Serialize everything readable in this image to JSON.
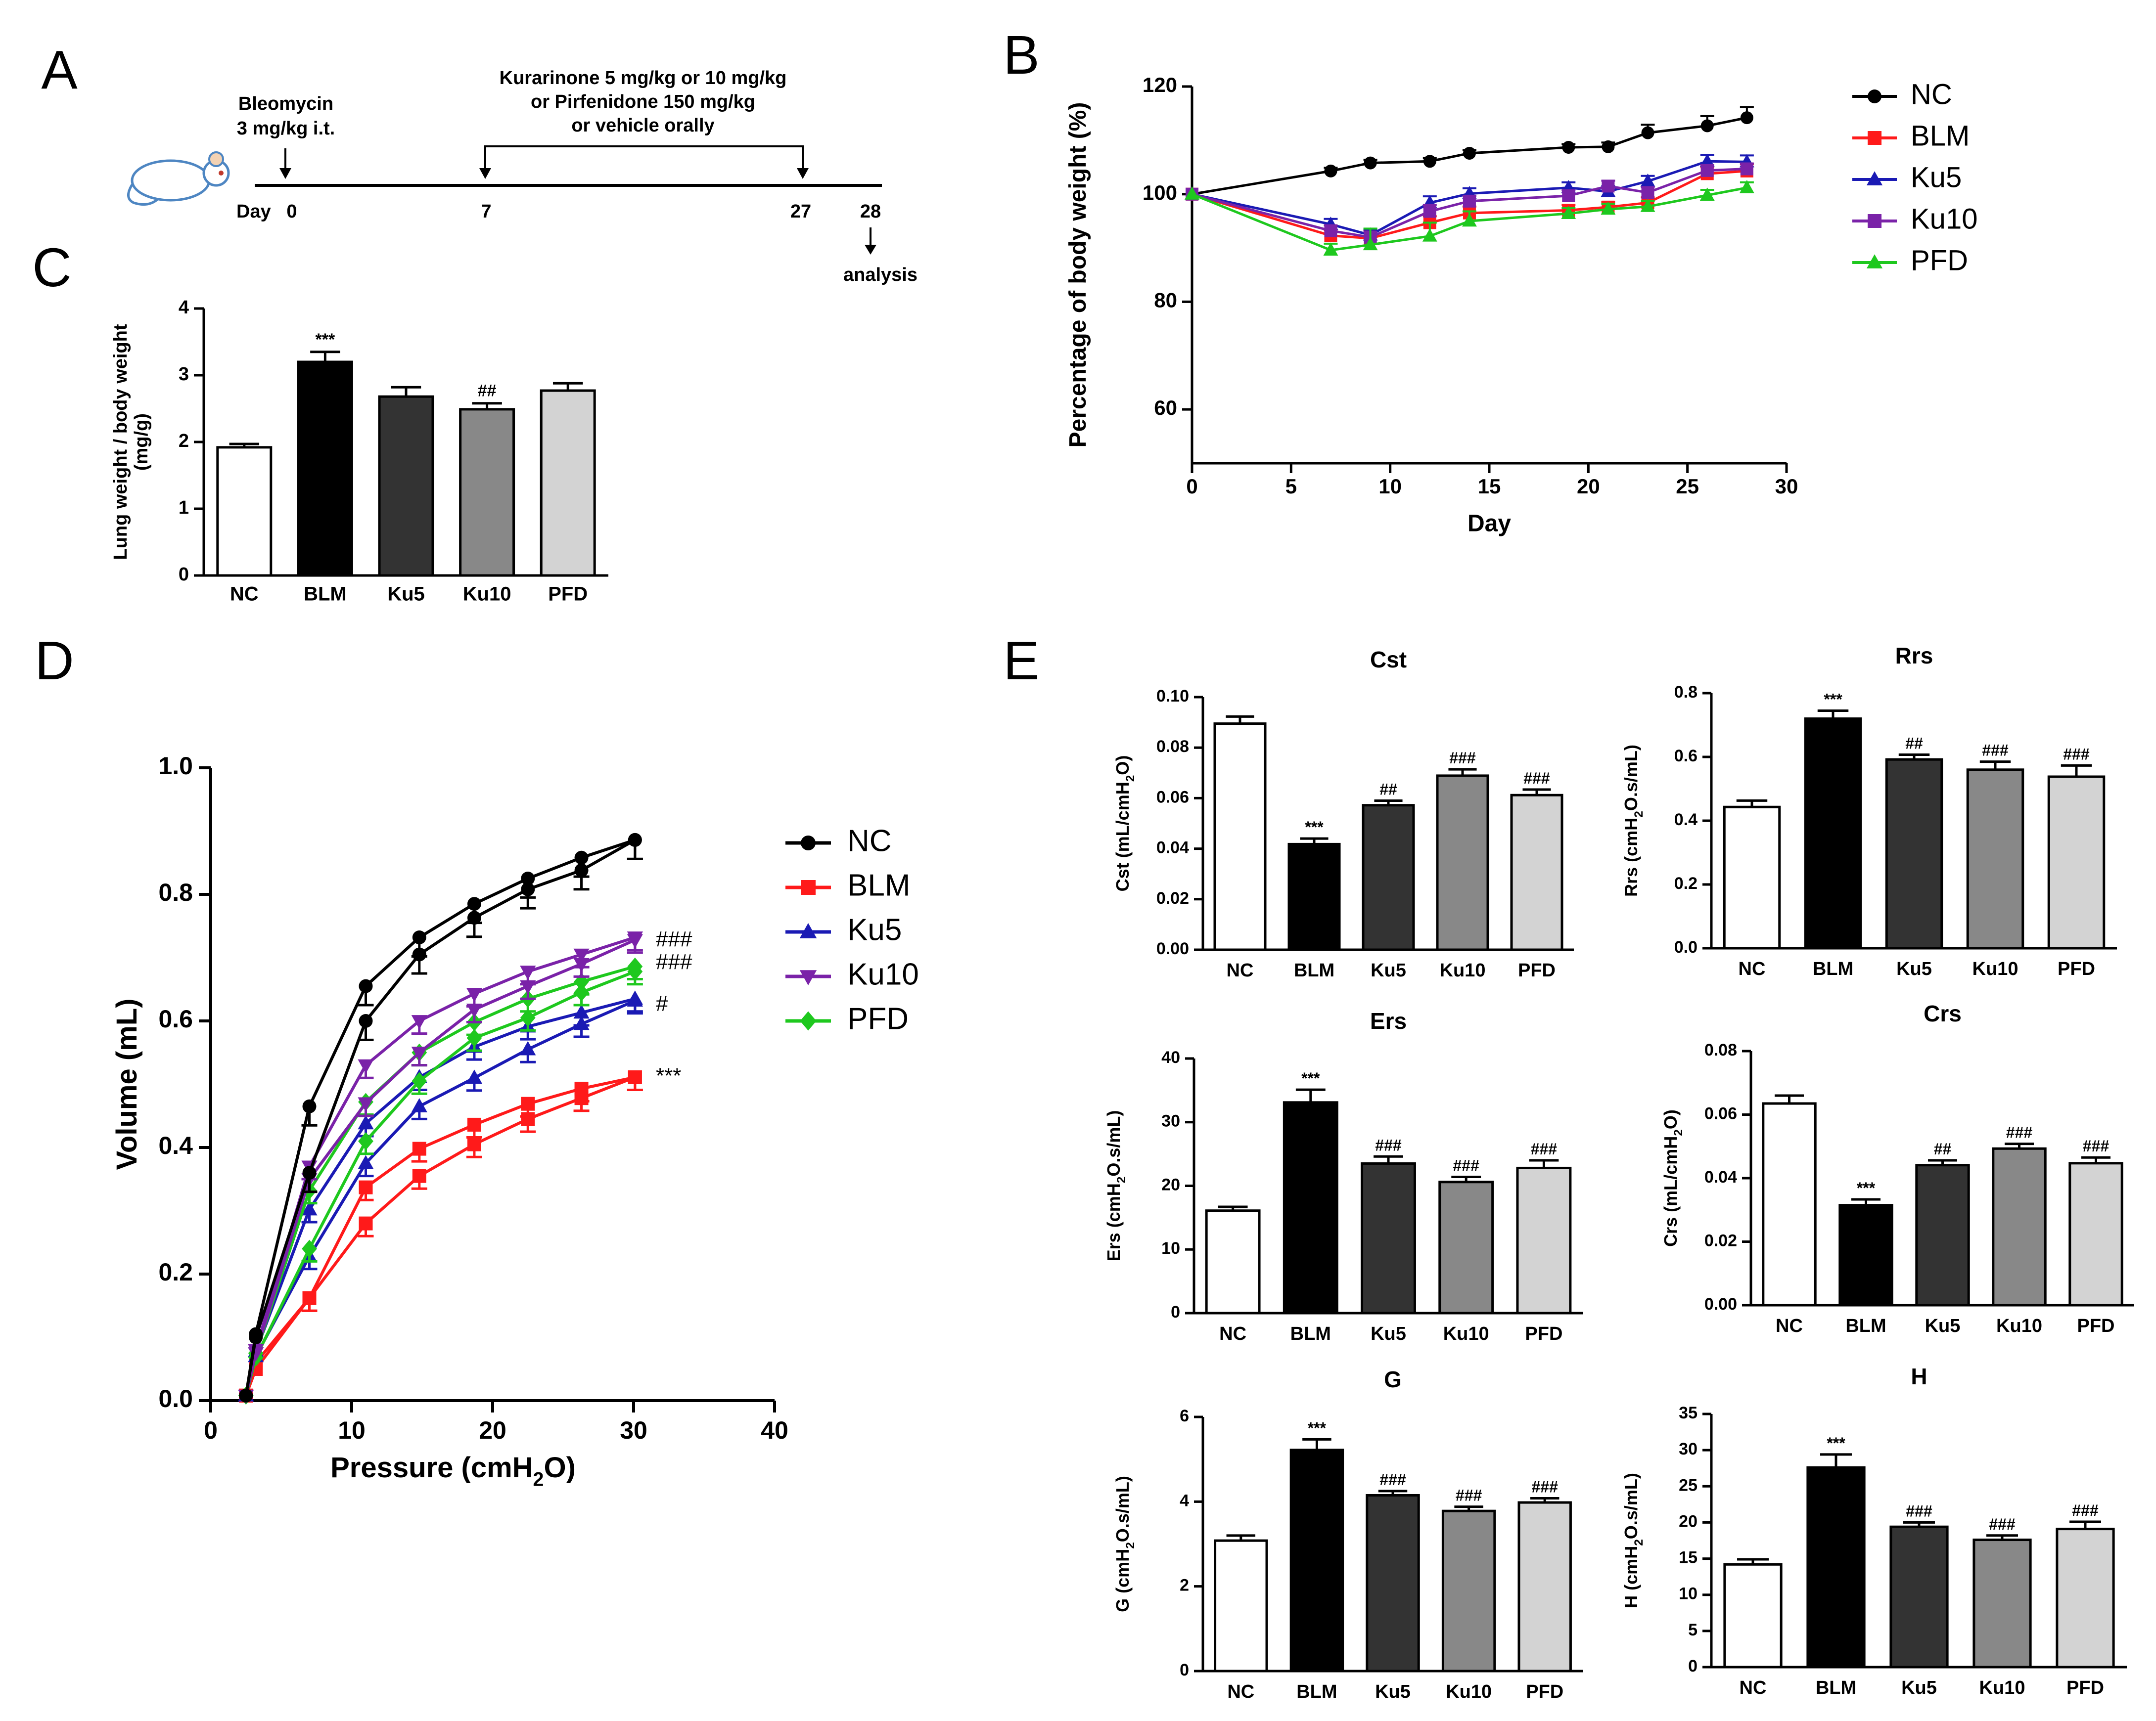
{
  "figure_labels": {
    "A": "A",
    "B": "B",
    "C": "C",
    "D": "D",
    "E": "E"
  },
  "colors": {
    "NC": "#000000",
    "BLM": "#ff1a1a",
    "Ku5": "#1a1ab4",
    "Ku10": "#7a22a8",
    "PFD": "#1ec81e"
  },
  "timeline": {
    "bleomycin_title": "Bleomycin",
    "bleomycin_dose": "3 mg/kg i.t.",
    "treatment_line1": "Kurarinone 5 mg/kg or 10 mg/kg",
    "treatment_line2": "or Pirfenidone 150 mg/kg",
    "treatment_line3": "or vehicle orally",
    "day_label": "Day",
    "day_ticks": [
      "0",
      "7",
      "27",
      "28"
    ],
    "analysis_label": "analysis"
  },
  "chart_data": [
    {
      "id": "B",
      "type": "line",
      "title": "",
      "xlabel": "Day",
      "ylabel": "Percentage of body weight (%)",
      "xlim": [
        0,
        30
      ],
      "ylim": [
        50,
        120
      ],
      "xticks": [
        0,
        5,
        10,
        15,
        20,
        25,
        30
      ],
      "yticks": [
        60,
        80,
        100,
        120
      ],
      "legend": "right",
      "series": [
        {
          "name": "NC",
          "marker": "circle",
          "x": [
            0,
            7,
            9,
            12,
            14,
            19,
            21,
            23,
            26,
            28
          ],
          "values": [
            100,
            104.3,
            105.8,
            106.1,
            107.6,
            108.7,
            108.8,
            111.4,
            112.7,
            114.2
          ],
          "err": [
            0,
            0.6,
            0.6,
            0.6,
            0.6,
            0.6,
            0.8,
            1.5,
            1.8,
            2.0
          ]
        },
        {
          "name": "BLM",
          "marker": "square",
          "x": [
            0,
            7,
            9,
            12,
            14,
            19,
            21,
            23,
            26,
            28
          ],
          "values": [
            100,
            92.3,
            91.8,
            94.7,
            96.5,
            97.0,
            97.6,
            98.4,
            103.8,
            104.3
          ],
          "err": [
            0,
            1.0,
            1.5,
            1.2,
            1.2,
            1.0,
            1.0,
            1.0,
            1.2,
            1.3
          ]
        },
        {
          "name": "Ku5",
          "marker": "triangle",
          "x": [
            0,
            7,
            9,
            12,
            14,
            19,
            21,
            23,
            26,
            28
          ],
          "values": [
            100,
            94.4,
            92.4,
            98.4,
            100.1,
            101.2,
            100.5,
            102.4,
            106.1,
            106.0
          ],
          "err": [
            0,
            1.0,
            1.0,
            1.2,
            1.0,
            1.0,
            1.0,
            1.0,
            1.2,
            1.2
          ]
        },
        {
          "name": "Ku10",
          "marker": "square",
          "x": [
            0,
            7,
            9,
            12,
            14,
            19,
            21,
            23,
            26,
            28
          ],
          "values": [
            100,
            93.2,
            92.0,
            96.8,
            98.7,
            99.7,
            101.5,
            100.3,
            104.4,
            104.7
          ],
          "err": [
            0,
            1.0,
            1.0,
            1.2,
            1.0,
            1.0,
            1.0,
            1.0,
            1.0,
            1.0
          ]
        },
        {
          "name": "PFD",
          "marker": "triangle",
          "x": [
            0,
            7,
            9,
            12,
            14,
            19,
            21,
            23,
            26,
            28
          ],
          "values": [
            100,
            89.6,
            90.6,
            92.2,
            95.0,
            96.4,
            97.2,
            97.7,
            99.8,
            101.2
          ],
          "err": [
            0,
            1.2,
            3.0,
            2.5,
            1.8,
            1.0,
            1.0,
            1.0,
            1.0,
            1.0
          ]
        }
      ]
    },
    {
      "id": "C",
      "type": "bar",
      "title": "",
      "xlabel": "",
      "ylabel": "Lung weight / body weight",
      "ylabel_sub": "(mg/g)",
      "ylim": [
        0,
        4
      ],
      "yticks": [
        0,
        1,
        2,
        3,
        4
      ],
      "categories": [
        "NC",
        "BLM",
        "Ku5",
        "Ku10",
        "PFD"
      ],
      "values": [
        1.92,
        3.2,
        2.68,
        2.49,
        2.77
      ],
      "err": [
        0.05,
        0.15,
        0.14,
        0.09,
        0.11
      ],
      "fills": [
        "#ffffff",
        "#000000",
        "#333333",
        "#888888",
        "#d3d3d3"
      ],
      "annotations": [
        "",
        "***",
        "",
        "##",
        ""
      ]
    },
    {
      "id": "D",
      "type": "line",
      "title": "",
      "xlabel": "Pressure (cmH",
      "xlabel_sub": "2",
      "xlabel_end": "O)",
      "ylabel": "Volume (mL)",
      "xlim": [
        0,
        40
      ],
      "ylim": [
        0,
        1
      ],
      "xticks": [
        0,
        10,
        20,
        30,
        40
      ],
      "yticks": [
        "0.0",
        "0.2",
        "0.4",
        "0.6",
        "0.8",
        "1.0"
      ],
      "legend": "right",
      "series": [
        {
          "name": "NC",
          "marker": "circle",
          "x": [
            2.5,
            3.2,
            7.0,
            11.0,
            14.8,
            18.7,
            22.5,
            26.3,
            30.1
          ],
          "inflation": [
            0.008,
            0.105,
            0.465,
            0.655,
            0.732,
            0.785,
            0.825,
            0.858,
            0.886
          ],
          "deflation": [
            0.008,
            0.1,
            0.36,
            0.6,
            0.705,
            0.763,
            0.808,
            0.838,
            0.886
          ],
          "err": 0.03,
          "annotation": ""
        },
        {
          "name": "BLM",
          "marker": "square",
          "x": [
            2.5,
            3.2,
            7.0,
            11.0,
            14.8,
            18.7,
            22.5,
            26.3,
            30.1
          ],
          "inflation": [
            0.008,
            0.06,
            0.162,
            0.337,
            0.398,
            0.436,
            0.469,
            0.493,
            0.511
          ],
          "deflation": [
            0.008,
            0.05,
            0.162,
            0.28,
            0.355,
            0.405,
            0.445,
            0.478,
            0.511
          ],
          "err": 0.02,
          "annotation": "***"
        },
        {
          "name": "Ku5",
          "marker": "triangle",
          "x": [
            2.5,
            3.2,
            7.0,
            11.0,
            14.8,
            18.7,
            22.5,
            26.3,
            30.1
          ],
          "inflation": [
            0.008,
            0.078,
            0.302,
            0.438,
            0.511,
            0.559,
            0.591,
            0.613,
            0.635
          ],
          "deflation": [
            0.008,
            0.07,
            0.228,
            0.375,
            0.465,
            0.51,
            0.555,
            0.595,
            0.632
          ],
          "err": 0.02,
          "annotation": "#"
        },
        {
          "name": "Ku10",
          "marker": "triangle-down",
          "x": [
            2.5,
            3.2,
            7.0,
            11.0,
            14.8,
            18.7,
            22.5,
            26.3,
            30.1
          ],
          "inflation": [
            0.008,
            0.08,
            0.37,
            0.53,
            0.6,
            0.643,
            0.678,
            0.705,
            0.732
          ],
          "deflation": [
            0.008,
            0.075,
            0.35,
            0.47,
            0.55,
            0.618,
            0.655,
            0.69,
            0.728
          ],
          "err": 0.02,
          "annotation": "###"
        },
        {
          "name": "PFD",
          "marker": "diamond",
          "x": [
            2.5,
            3.2,
            7.0,
            11.0,
            14.8,
            18.7,
            22.5,
            26.3,
            30.1
          ],
          "inflation": [
            0.008,
            0.075,
            0.332,
            0.472,
            0.55,
            0.598,
            0.635,
            0.662,
            0.686
          ],
          "deflation": [
            0.008,
            0.068,
            0.24,
            0.41,
            0.505,
            0.573,
            0.605,
            0.645,
            0.678
          ],
          "err": 0.02,
          "annotation": "###"
        }
      ]
    },
    {
      "id": "E-Cst",
      "type": "bar",
      "title": "Cst",
      "ylabel": "Cst (mL/cmH",
      "ylabel_sub": "2",
      "ylabel_end": "O)",
      "ylim": [
        0,
        0.1
      ],
      "yticks": [
        "0.00",
        "0.02",
        "0.04",
        "0.06",
        "0.08",
        "0.10"
      ],
      "categories": [
        "NC",
        "BLM",
        "Ku5",
        "Ku10",
        "PFD"
      ],
      "values": [
        0.0895,
        0.0418,
        0.0572,
        0.0689,
        0.0612
      ],
      "err": [
        0.0028,
        0.0022,
        0.0018,
        0.0025,
        0.0022
      ],
      "fills": [
        "#ffffff",
        "#000000",
        "#333333",
        "#888888",
        "#d3d3d3"
      ],
      "annotations": [
        "",
        "***",
        "##",
        "###",
        "###"
      ]
    },
    {
      "id": "E-Rrs",
      "type": "bar",
      "title": "Rrs",
      "ylabel": "Rrs (cmH",
      "ylabel_sub": "2",
      "ylabel_end": "O.s/mL)",
      "ylim": [
        0,
        0.8
      ],
      "yticks": [
        "0.0",
        "0.2",
        "0.4",
        "0.6",
        "0.8"
      ],
      "categories": [
        "NC",
        "BLM",
        "Ku5",
        "Ku10",
        "PFD"
      ],
      "values": [
        0.443,
        0.72,
        0.592,
        0.56,
        0.538
      ],
      "err": [
        0.02,
        0.025,
        0.015,
        0.025,
        0.035
      ],
      "fills": [
        "#ffffff",
        "#000000",
        "#333333",
        "#888888",
        "#d3d3d3"
      ],
      "annotations": [
        "",
        "***",
        "##",
        "###",
        "###"
      ]
    },
    {
      "id": "E-Ers",
      "type": "bar",
      "title": "Ers",
      "ylabel": "Ers (cmH",
      "ylabel_sub": "2",
      "ylabel_end": "O.s/mL)",
      "ylim": [
        0,
        40
      ],
      "yticks": [
        "0",
        "10",
        "20",
        "30",
        "40"
      ],
      "categories": [
        "NC",
        "BLM",
        "Ku5",
        "Ku10",
        "PFD"
      ],
      "values": [
        16.1,
        33.1,
        23.5,
        20.6,
        22.8
      ],
      "err": [
        0.6,
        2.0,
        1.1,
        0.8,
        1.2
      ],
      "fills": [
        "#ffffff",
        "#000000",
        "#333333",
        "#888888",
        "#d3d3d3"
      ],
      "annotations": [
        "",
        "***",
        "###",
        "###",
        "###"
      ]
    },
    {
      "id": "E-Crs",
      "type": "bar",
      "title": "Crs",
      "ylabel": "Crs (mL/cmH",
      "ylabel_sub": "2",
      "ylabel_end": "O)",
      "ylim": [
        0,
        0.08
      ],
      "yticks": [
        "0.00",
        "0.02",
        "0.04",
        "0.06",
        "0.08"
      ],
      "categories": [
        "NC",
        "BLM",
        "Ku5",
        "Ku10",
        "PFD"
      ],
      "values": [
        0.0635,
        0.0315,
        0.0441,
        0.0493,
        0.0447
      ],
      "err": [
        0.0025,
        0.0018,
        0.0015,
        0.0015,
        0.0018
      ],
      "fills": [
        "#ffffff",
        "#000000",
        "#333333",
        "#888888",
        "#d3d3d3"
      ],
      "annotations": [
        "",
        "***",
        "##",
        "###",
        "###"
      ]
    },
    {
      "id": "E-G",
      "type": "bar",
      "title": "G",
      "ylabel": "G (cmH",
      "ylabel_sub": "2",
      "ylabel_end": "O.s/mL)",
      "ylim": [
        0,
        6
      ],
      "yticks": [
        "0",
        "2",
        "4",
        "6"
      ],
      "categories": [
        "NC",
        "BLM",
        "Ku5",
        "Ku10",
        "PFD"
      ],
      "values": [
        3.08,
        5.22,
        4.15,
        3.78,
        3.98
      ],
      "err": [
        0.12,
        0.25,
        0.1,
        0.1,
        0.1
      ],
      "fills": [
        "#ffffff",
        "#000000",
        "#333333",
        "#888888",
        "#d3d3d3"
      ],
      "annotations": [
        "",
        "***",
        "###",
        "###",
        "###"
      ]
    },
    {
      "id": "E-H",
      "type": "bar",
      "title": "H",
      "ylabel": "H (cmH",
      "ylabel_sub": "2",
      "ylabel_end": "O.s/mL)",
      "ylim": [
        0,
        35
      ],
      "yticks": [
        "0",
        "5",
        "10",
        "15",
        "20",
        "25",
        "30",
        "35"
      ],
      "categories": [
        "NC",
        "BLM",
        "Ku5",
        "Ku10",
        "PFD"
      ],
      "values": [
        14.2,
        27.6,
        19.4,
        17.6,
        19.1
      ],
      "err": [
        0.7,
        1.8,
        0.6,
        0.6,
        1.0
      ],
      "fills": [
        "#ffffff",
        "#000000",
        "#333333",
        "#888888",
        "#d3d3d3"
      ],
      "annotations": [
        "",
        "***",
        "###",
        "###",
        "###"
      ]
    }
  ]
}
